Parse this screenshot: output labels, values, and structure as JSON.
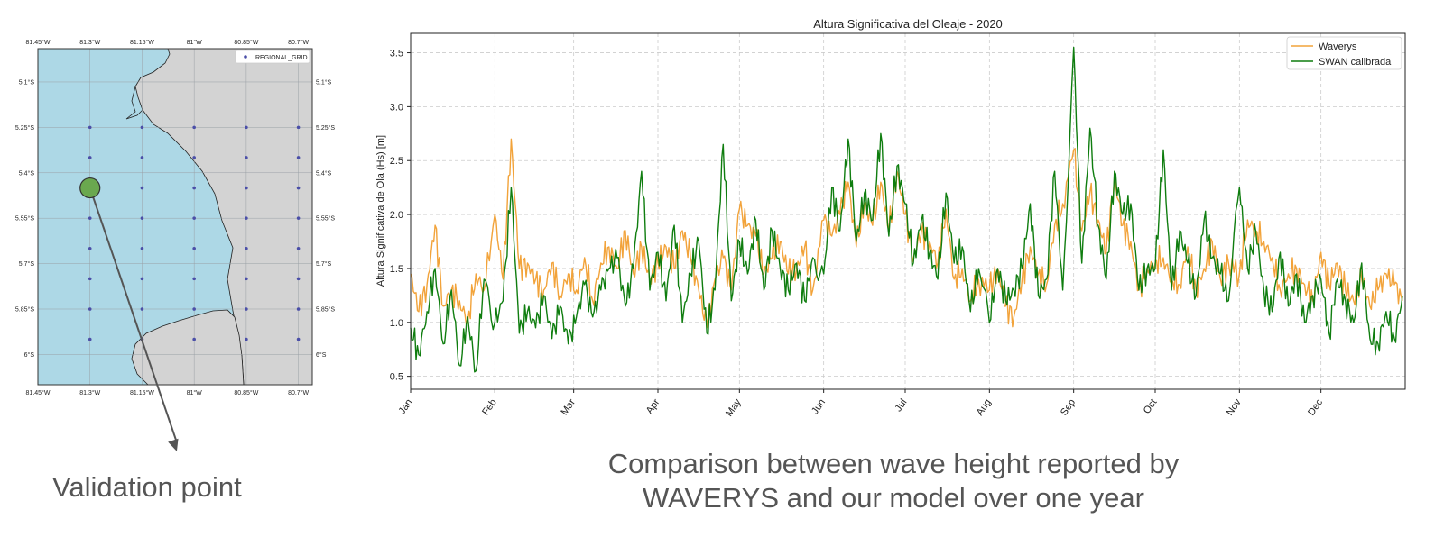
{
  "colors": {
    "sea": "#add8e6",
    "land": "#d3d3d3",
    "grid_point": "#4b4fa8",
    "validation_point": "#6aa84f",
    "waverys": "#f2a33a",
    "swan": "#0f7d0f",
    "caption": "#555555"
  },
  "captions": {
    "left": "Validation point",
    "right_line1": "Comparison between wave height reported by",
    "right_line2": "WAVERYS and our model over one year"
  },
  "map": {
    "legend_label": "REGIONAL_GRID",
    "lon_ticks": [
      "81.45°W",
      "81.3°W",
      "81.15°W",
      "81°W",
      "80.85°W",
      "80.7°W"
    ],
    "lat_ticks": [
      "5.1°S",
      "5.25°S",
      "5.4°S",
      "5.55°S",
      "5.7°S",
      "5.85°S",
      "6°S"
    ],
    "lon_values": [
      -81.45,
      -81.3,
      -81.15,
      -81.0,
      -80.85,
      -80.7
    ],
    "lat_values": [
      -5.1,
      -5.25,
      -5.4,
      -5.55,
      -5.7,
      -5.85,
      -6.0
    ],
    "extent": {
      "lon_min": -81.45,
      "lon_max": -80.66,
      "lat_min": -6.1,
      "lat_max": -4.99
    },
    "grid_points": [
      [
        -81.3,
        -5.25
      ],
      [
        -81.15,
        -5.25
      ],
      [
        -81.0,
        -5.25
      ],
      [
        -80.85,
        -5.25
      ],
      [
        -80.7,
        -5.25
      ],
      [
        -81.3,
        -5.35
      ],
      [
        -81.15,
        -5.35
      ],
      [
        -81.0,
        -5.35
      ],
      [
        -80.85,
        -5.35
      ],
      [
        -80.7,
        -5.35
      ],
      [
        -81.15,
        -5.45
      ],
      [
        -81.0,
        -5.45
      ],
      [
        -80.85,
        -5.45
      ],
      [
        -80.7,
        -5.45
      ],
      [
        -81.3,
        -5.55
      ],
      [
        -81.15,
        -5.55
      ],
      [
        -81.0,
        -5.55
      ],
      [
        -80.85,
        -5.55
      ],
      [
        -80.7,
        -5.55
      ],
      [
        -81.3,
        -5.65
      ],
      [
        -81.15,
        -5.65
      ],
      [
        -81.0,
        -5.65
      ],
      [
        -80.85,
        -5.65
      ],
      [
        -80.7,
        -5.65
      ],
      [
        -81.3,
        -5.75
      ],
      [
        -81.15,
        -5.75
      ],
      [
        -81.0,
        -5.75
      ],
      [
        -80.85,
        -5.75
      ],
      [
        -80.7,
        -5.75
      ],
      [
        -81.3,
        -5.85
      ],
      [
        -81.15,
        -5.85
      ],
      [
        -81.0,
        -5.85
      ],
      [
        -80.85,
        -5.85
      ],
      [
        -80.7,
        -5.85
      ],
      [
        -81.3,
        -5.95
      ],
      [
        -81.15,
        -5.95
      ],
      [
        -81.0,
        -5.95
      ],
      [
        -80.85,
        -5.95
      ],
      [
        -80.7,
        -5.95
      ]
    ],
    "validation_point": {
      "lon": -81.3,
      "lat": -5.45
    },
    "arrow_end": {
      "lon": -81.05,
      "lat": -6.32
    }
  },
  "chart_data": {
    "type": "line",
    "title": "Altura Significativa del Oleaje - 2020",
    "xlabel": "",
    "ylabel": "Altura Significativa de Ola (Hs) [m]",
    "ylim": [
      0.38,
      3.68
    ],
    "xlim": [
      0,
      366
    ],
    "yticks": [
      0.5,
      1.0,
      1.5,
      2.0,
      2.5,
      3.0,
      3.5
    ],
    "ytick_labels": [
      "0.5",
      "1.0",
      "1.5",
      "2.0",
      "2.5",
      "3.0",
      "3.5"
    ],
    "x_ticks_day": [
      0,
      31,
      60,
      91,
      121,
      152,
      182,
      213,
      244,
      274,
      305,
      335
    ],
    "x_tick_labels": [
      "Jan",
      "Feb",
      "Mar",
      "Apr",
      "May",
      "Jun",
      "Jul",
      "Aug",
      "Sep",
      "Oct",
      "Nov",
      "Dec"
    ],
    "grid": true,
    "legend_position": "top-right",
    "series": [
      {
        "name": "Waverys",
        "color": "#f2a33a",
        "x": [
          0,
          3,
          6,
          9,
          12,
          15,
          18,
          21,
          24,
          27,
          31,
          34,
          37,
          40,
          43,
          46,
          49,
          52,
          55,
          58,
          61,
          64,
          67,
          70,
          73,
          76,
          79,
          82,
          85,
          88,
          91,
          94,
          97,
          100,
          103,
          106,
          109,
          112,
          115,
          118,
          121,
          124,
          127,
          130,
          133,
          136,
          139,
          142,
          145,
          148,
          152,
          155,
          158,
          161,
          164,
          167,
          170,
          173,
          176,
          179,
          182,
          185,
          188,
          191,
          194,
          197,
          200,
          203,
          206,
          209,
          213,
          216,
          219,
          222,
          225,
          228,
          231,
          234,
          237,
          240,
          244,
          247,
          250,
          253,
          256,
          259,
          262,
          265,
          268,
          271,
          274,
          277,
          280,
          283,
          286,
          289,
          292,
          295,
          298,
          301,
          305,
          308,
          311,
          314,
          317,
          320,
          323,
          326,
          329,
          332,
          335,
          338,
          341,
          344,
          347,
          350,
          353,
          356,
          359,
          362,
          365
        ],
        "y": [
          1.45,
          1.1,
          1.35,
          1.9,
          1.15,
          1.3,
          1.2,
          1.0,
          1.45,
          1.3,
          2.0,
          1.4,
          2.7,
          1.5,
          1.55,
          1.4,
          1.3,
          1.55,
          1.25,
          1.45,
          1.3,
          1.6,
          1.2,
          1.55,
          1.7,
          1.5,
          1.85,
          1.45,
          1.7,
          1.4,
          1.55,
          1.7,
          1.5,
          1.85,
          1.6,
          1.3,
          0.95,
          1.4,
          1.6,
          1.3,
          2.05,
          1.9,
          1.8,
          1.45,
          1.6,
          1.75,
          1.45,
          1.5,
          1.7,
          1.3,
          1.95,
          1.8,
          2.0,
          2.3,
          1.7,
          2.1,
          1.9,
          2.3,
          1.85,
          2.4,
          2.0,
          1.6,
          1.85,
          1.75,
          1.55,
          2.05,
          1.4,
          1.5,
          1.2,
          1.4,
          1.3,
          1.5,
          1.15,
          1.05,
          1.4,
          1.7,
          1.45,
          1.35,
          1.9,
          2.1,
          2.6,
          1.85,
          2.2,
          1.95,
          1.65,
          2.35,
          1.9,
          1.75,
          1.3,
          1.5,
          1.55,
          1.6,
          1.4,
          1.35,
          1.7,
          1.3,
          1.5,
          1.75,
          1.4,
          1.55,
          1.45,
          1.95,
          1.85,
          1.75,
          1.6,
          1.3,
          1.45,
          1.5,
          1.35,
          1.2,
          1.65,
          1.35,
          1.55,
          1.3,
          1.2,
          1.4,
          1.15,
          1.3,
          1.45,
          1.35,
          1.2
        ]
      },
      {
        "name": "SWAN calibrada",
        "color": "#0f7d0f",
        "x": [
          0,
          3,
          6,
          9,
          12,
          15,
          18,
          21,
          24,
          27,
          31,
          34,
          37,
          40,
          43,
          46,
          49,
          52,
          55,
          58,
          61,
          64,
          67,
          70,
          73,
          76,
          79,
          82,
          85,
          88,
          91,
          94,
          97,
          100,
          103,
          106,
          109,
          112,
          115,
          118,
          121,
          124,
          127,
          130,
          133,
          136,
          139,
          142,
          145,
          148,
          152,
          155,
          158,
          161,
          164,
          167,
          170,
          173,
          176,
          179,
          182,
          185,
          188,
          191,
          194,
          197,
          200,
          203,
          206,
          209,
          213,
          216,
          219,
          222,
          225,
          228,
          231,
          234,
          237,
          240,
          244,
          247,
          250,
          253,
          256,
          259,
          262,
          265,
          268,
          271,
          274,
          277,
          280,
          283,
          286,
          289,
          292,
          295,
          298,
          301,
          305,
          308,
          311,
          314,
          317,
          320,
          323,
          326,
          329,
          332,
          335,
          338,
          341,
          344,
          347,
          350,
          353,
          356,
          359,
          362,
          365
        ],
        "y": [
          0.95,
          0.7,
          1.1,
          1.5,
          0.8,
          1.3,
          0.6,
          1.05,
          0.55,
          1.4,
          1.0,
          1.2,
          2.25,
          0.9,
          1.1,
          0.95,
          1.25,
          0.85,
          1.15,
          0.8,
          1.05,
          1.35,
          1.05,
          1.3,
          1.5,
          1.6,
          1.15,
          1.5,
          2.4,
          1.3,
          1.65,
          1.2,
          1.9,
          1.0,
          1.45,
          1.75,
          0.9,
          1.3,
          2.65,
          1.2,
          1.75,
          1.45,
          1.95,
          1.3,
          1.85,
          1.5,
          1.3,
          1.55,
          1.2,
          1.6,
          1.45,
          2.25,
          1.85,
          2.7,
          1.75,
          2.2,
          1.95,
          2.75,
          1.8,
          2.45,
          2.1,
          1.55,
          1.95,
          1.65,
          1.4,
          2.2,
          1.55,
          1.7,
          1.1,
          1.5,
          1.0,
          1.5,
          1.2,
          1.3,
          1.5,
          2.1,
          1.25,
          1.4,
          2.4,
          1.3,
          3.55,
          1.55,
          2.8,
          1.9,
          1.4,
          2.4,
          2.0,
          2.1,
          1.3,
          1.5,
          1.5,
          2.6,
          1.3,
          1.85,
          1.55,
          1.25,
          1.95,
          1.6,
          1.45,
          1.2,
          2.25,
          1.5,
          1.85,
          1.3,
          1.1,
          1.65,
          1.15,
          1.45,
          1.0,
          1.25,
          1.4,
          0.9,
          1.4,
          1.2,
          1.0,
          1.55,
          0.85,
          0.8,
          1.1,
          0.85,
          1.25
        ]
      }
    ]
  }
}
